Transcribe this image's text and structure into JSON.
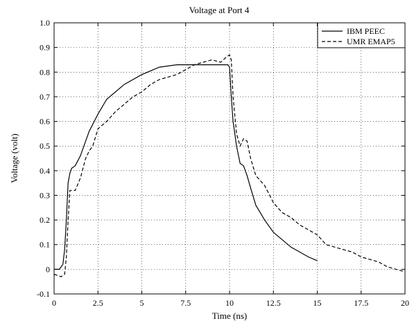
{
  "chart_data": {
    "type": "line",
    "title": "Voltage at Port 4",
    "xlabel": "Time (ns)",
    "ylabel": "Voltage (volt)",
    "xlim": [
      0,
      20
    ],
    "ylim": [
      -0.1,
      1.0
    ],
    "xticks": [
      0,
      2.5,
      5,
      7.5,
      10,
      12.5,
      15,
      17.5,
      20
    ],
    "xtick_labels": [
      "0",
      "2.5",
      "5",
      "7.5",
      "10",
      "12.5",
      "15",
      "17.5",
      "20"
    ],
    "yticks": [
      -0.1,
      0,
      0.1,
      0.2,
      0.3,
      0.4,
      0.5,
      0.6,
      0.7,
      0.8,
      0.9,
      1.0
    ],
    "ytick_labels": [
      "-0.1",
      "0",
      "0.1",
      "0.2",
      "0.3",
      "0.4",
      "0.5",
      "0.6",
      "0.7",
      "0.8",
      "0.9",
      "1.0"
    ],
    "grid": true,
    "legend_position": "top-right",
    "series": [
      {
        "name": "IBM PEEC",
        "style": "solid",
        "color": "#000000",
        "x": [
          0,
          0.3,
          0.5,
          0.6,
          0.7,
          0.8,
          0.9,
          1.0,
          1.2,
          1.5,
          1.8,
          2.0,
          2.5,
          3.0,
          4.0,
          5.0,
          6.0,
          7.0,
          8.0,
          9.0,
          9.5,
          9.9,
          10.0,
          10.1,
          10.2,
          10.4,
          10.6,
          10.8,
          11.0,
          11.2,
          11.5,
          12.0,
          12.5,
          13.0,
          13.5,
          14.0,
          14.5,
          15.0
        ],
        "y": [
          0.0,
          0.0,
          0.02,
          0.08,
          0.2,
          0.35,
          0.39,
          0.41,
          0.42,
          0.46,
          0.52,
          0.56,
          0.63,
          0.69,
          0.75,
          0.79,
          0.82,
          0.83,
          0.83,
          0.83,
          0.83,
          0.83,
          0.82,
          0.7,
          0.6,
          0.5,
          0.43,
          0.42,
          0.38,
          0.33,
          0.26,
          0.2,
          0.15,
          0.12,
          0.09,
          0.07,
          0.05,
          0.035
        ]
      },
      {
        "name": "UMR EMAP5",
        "style": "dashed",
        "color": "#000000",
        "x": [
          0,
          0.4,
          0.6,
          0.7,
          0.8,
          0.9,
          1.0,
          1.2,
          1.5,
          1.8,
          2.0,
          2.2,
          2.5,
          3.0,
          3.5,
          4.0,
          4.5,
          5.0,
          5.5,
          6.0,
          6.5,
          7.0,
          7.5,
          8.0,
          8.5,
          9.0,
          9.5,
          9.8,
          10.0,
          10.1,
          10.2,
          10.4,
          10.6,
          10.8,
          11.0,
          11.2,
          11.5,
          12.0,
          12.5,
          13.0,
          13.5,
          14.0,
          14.5,
          15.0,
          15.5,
          16.0,
          16.5,
          17.0,
          17.5,
          18.0,
          18.5,
          19.0,
          19.5,
          20.0
        ],
        "y": [
          -0.02,
          -0.03,
          -0.02,
          0.05,
          0.2,
          0.32,
          0.32,
          0.32,
          0.37,
          0.45,
          0.48,
          0.5,
          0.57,
          0.6,
          0.64,
          0.67,
          0.7,
          0.72,
          0.75,
          0.77,
          0.78,
          0.79,
          0.81,
          0.83,
          0.84,
          0.85,
          0.84,
          0.86,
          0.87,
          0.85,
          0.7,
          0.55,
          0.5,
          0.53,
          0.52,
          0.45,
          0.38,
          0.34,
          0.27,
          0.23,
          0.21,
          0.18,
          0.16,
          0.14,
          0.1,
          0.09,
          0.08,
          0.07,
          0.05,
          0.04,
          0.03,
          0.01,
          0.0,
          -0.01
        ]
      }
    ]
  }
}
